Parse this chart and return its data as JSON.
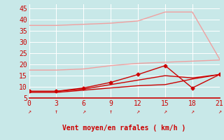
{
  "x": [
    0,
    3,
    6,
    9,
    12,
    15,
    18,
    21
  ],
  "line1": [
    37.5,
    37.5,
    38.0,
    38.5,
    39.5,
    43.5,
    43.5,
    22.5
  ],
  "line2": [
    17.5,
    17.5,
    18.0,
    19.5,
    20.5,
    21.0,
    21.5,
    22.0
  ],
  "line3": [
    8.0,
    8.0,
    9.5,
    12.0,
    15.5,
    19.5,
    9.5,
    15.5
  ],
  "line4": [
    8.0,
    8.0,
    9.0,
    11.0,
    13.0,
    15.0,
    14.0,
    15.5
  ],
  "line5": [
    7.5,
    7.5,
    8.5,
    9.5,
    10.5,
    11.0,
    13.5,
    15.5
  ],
  "color_light": "#f0a0a0",
  "color_dark": "#cc0000",
  "bg_color": "#c8e8e8",
  "grid_color": "#b0d8d8",
  "xlabel": "Vent moyen/en rafales ( km/h )",
  "xlabel_color": "#cc0000",
  "xlabel_fontsize": 7,
  "tick_color": "#cc0000",
  "tick_fontsize": 7,
  "ylim": [
    5,
    47
  ],
  "xlim": [
    0,
    21
  ],
  "yticks": [
    5,
    10,
    15,
    20,
    25,
    30,
    35,
    40,
    45
  ],
  "xticks": [
    0,
    3,
    6,
    9,
    12,
    15,
    18,
    21
  ],
  "arrows": [
    "↗",
    "↑",
    "↗",
    "↑",
    "↗",
    "↗",
    "↗",
    "↗"
  ]
}
